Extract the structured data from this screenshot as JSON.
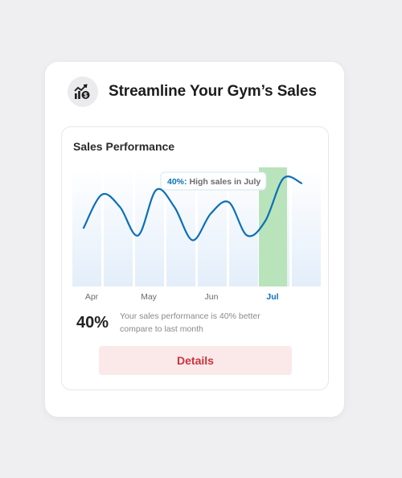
{
  "header": {
    "title": "Streamline Your Gym’s Sales",
    "icon": "sales-growth-icon"
  },
  "panel": {
    "title": "Sales Performance",
    "stat_value": "40%",
    "stat_description": "Your sales performance is 40% better compare to last month",
    "details_label": "Details"
  },
  "colors": {
    "accent_blue": "#0b6fb8",
    "highlight_green": "#b9e3bb",
    "details_red": "#c8343d",
    "details_bg": "#fbe9ea"
  },
  "chart_data": {
    "type": "line",
    "x_labels": [
      "Apr",
      "May",
      "Jun",
      "Jul"
    ],
    "highlighted_label": "Jul",
    "annotation": {
      "value": "40%:",
      "text": "High sales in July"
    },
    "series": [
      {
        "values": [
          0.38,
          0.73,
          0.6,
          0.3,
          0.78,
          0.6,
          0.25,
          0.53,
          0.65,
          0.3,
          0.45,
          0.9,
          0.85
        ]
      }
    ],
    "ylim": [
      0,
      1
    ],
    "grid": false
  }
}
